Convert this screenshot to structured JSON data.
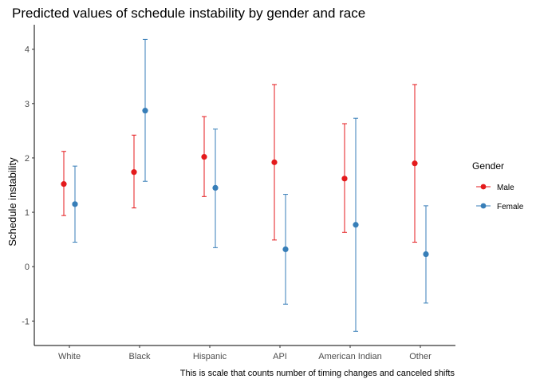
{
  "chart_data": {
    "type": "scatter",
    "title": "Predicted values of schedule instability by gender and race",
    "xlabel": "",
    "ylabel": "Schedule instability",
    "caption": "This is scale that counts number of timing changes and canceled shifts",
    "categories": [
      "White",
      "Black",
      "Hispanic",
      "API",
      "American Indian",
      "Other"
    ],
    "ylim": [
      -1.45,
      4.45
    ],
    "yticks": [
      "-1",
      "0",
      "1",
      "2",
      "3",
      "4"
    ],
    "grid": false,
    "legend": {
      "title": "Gender",
      "position": "right"
    },
    "series": [
      {
        "name": "Male",
        "color": "#e41a1c",
        "values": [
          1.52,
          1.74,
          2.02,
          1.92,
          1.62,
          1.9
        ],
        "lower": [
          0.94,
          1.08,
          1.29,
          0.49,
          0.63,
          0.45
        ],
        "upper": [
          2.12,
          2.42,
          2.76,
          3.35,
          2.63,
          3.35
        ]
      },
      {
        "name": "Female",
        "color": "#377eb8",
        "values": [
          1.15,
          2.87,
          1.45,
          0.32,
          0.77,
          0.23
        ],
        "lower": [
          0.45,
          1.57,
          0.35,
          -0.69,
          -1.19,
          -0.67
        ],
        "upper": [
          1.85,
          4.18,
          2.53,
          1.33,
          2.73,
          1.12
        ]
      }
    ]
  }
}
